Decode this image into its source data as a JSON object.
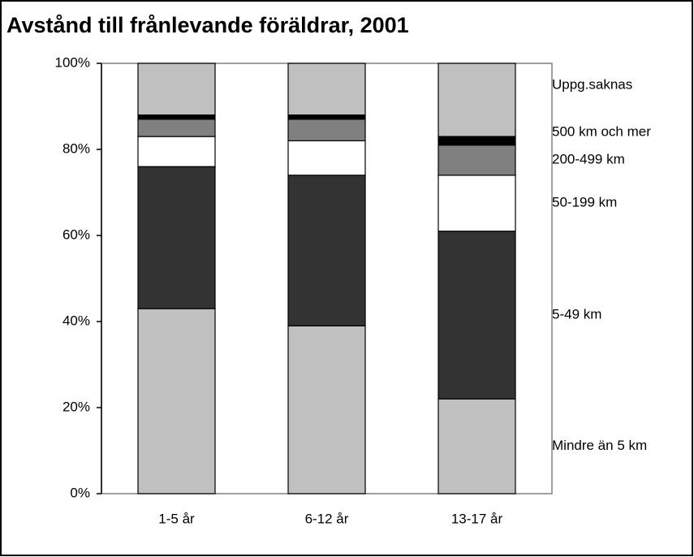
{
  "chart_data": {
    "type": "stacked_bar",
    "title": "Avstånd till frånlevande föräldrar, 2001",
    "categories": [
      "1-5 år",
      "6-12 år",
      "13-17 år"
    ],
    "series": [
      {
        "name": "Mindre än 5 km",
        "color": "#c0c0c0",
        "values": [
          43,
          39,
          22
        ]
      },
      {
        "name": "5-49 km",
        "color": "#333333",
        "values": [
          33,
          35,
          39
        ]
      },
      {
        "name": "50-199 km",
        "color": "#ffffff",
        "values": [
          7,
          8,
          13
        ]
      },
      {
        "name": "200-499 km",
        "color": "#808080",
        "values": [
          4,
          5,
          7
        ]
      },
      {
        "name": "500 km och mer",
        "color": "#000000",
        "values": [
          1,
          1,
          2
        ]
      },
      {
        "name": "Uppg.saknas",
        "color": "#c0c0c0",
        "values": [
          12,
          12,
          17
        ]
      }
    ],
    "ylim": [
      0,
      100
    ],
    "yticks": [
      {
        "value": 0,
        "label": "0%"
      },
      {
        "value": 20,
        "label": "20%"
      },
      {
        "value": 40,
        "label": "40%"
      },
      {
        "value": 60,
        "label": "60%"
      },
      {
        "value": 80,
        "label": "80%"
      },
      {
        "value": 100,
        "label": "100%"
      }
    ],
    "grid": false
  }
}
